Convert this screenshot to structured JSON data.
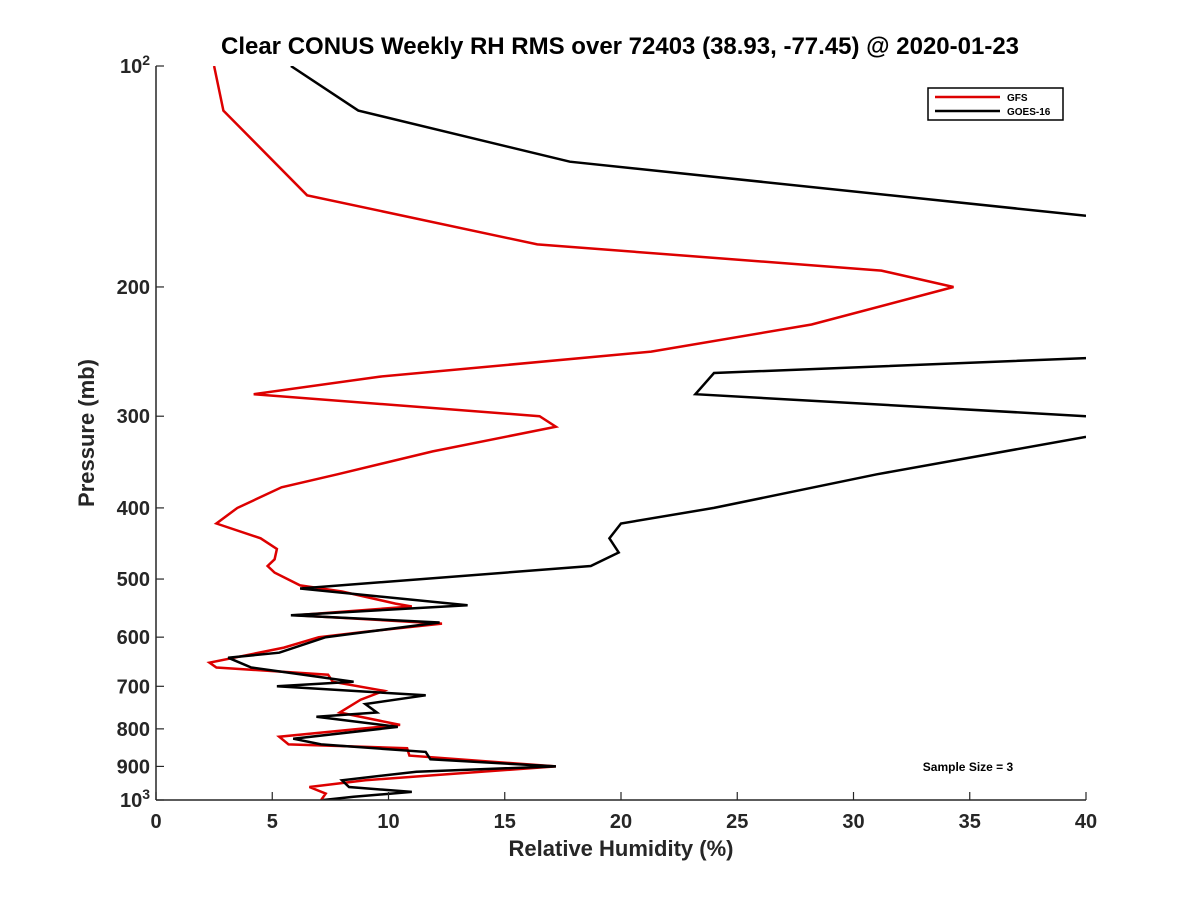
{
  "chart_data": {
    "type": "line",
    "title": "Clear CONUS Weekly RH RMS over 72403 (38.93, -77.45) @ 2020-01-23",
    "xlabel": "Relative Humidity (%)",
    "ylabel": "Pressure (mb)",
    "xlim": [
      0,
      40
    ],
    "ylim": [
      100,
      1000
    ],
    "y_scale": "log",
    "y_reversed": true,
    "x_ticks": [
      "0",
      "5",
      "10",
      "15",
      "20",
      "25",
      "30",
      "35",
      "40"
    ],
    "y_ticks": [
      {
        "value": 100,
        "base": "10",
        "exp": "2"
      },
      {
        "value": 200,
        "label": "200"
      },
      {
        "value": 300,
        "label": "300"
      },
      {
        "value": 400,
        "label": "400"
      },
      {
        "value": 500,
        "label": "500"
      },
      {
        "value": 600,
        "label": "600"
      },
      {
        "value": 700,
        "label": "700"
      },
      {
        "value": 800,
        "label": "800"
      },
      {
        "value": 900,
        "label": "900"
      },
      {
        "value": 1000,
        "base": "10",
        "exp": "3"
      }
    ],
    "legend_position": "top-right",
    "series": [
      {
        "name": "GFS",
        "color": "#dd0000",
        "points": [
          [
            2.5,
            100
          ],
          [
            2.9,
            115
          ],
          [
            6.5,
            150
          ],
          [
            16.4,
            175
          ],
          [
            31.2,
            190
          ],
          [
            34.3,
            200
          ],
          [
            28.2,
            225
          ],
          [
            21.3,
            245
          ],
          [
            9.6,
            265
          ],
          [
            4.2,
            280
          ],
          [
            16.5,
            300
          ],
          [
            17.2,
            310
          ],
          [
            11.9,
            335
          ],
          [
            7.8,
            360
          ],
          [
            5.4,
            375
          ],
          [
            3.5,
            400
          ],
          [
            2.6,
            420
          ],
          [
            4.5,
            440
          ],
          [
            5.2,
            455
          ],
          [
            5.1,
            470
          ],
          [
            4.8,
            480
          ],
          [
            5.1,
            490
          ],
          [
            6.2,
            510
          ],
          [
            8.0,
            520
          ],
          [
            10.3,
            540
          ],
          [
            11.0,
            545
          ],
          [
            6.0,
            560
          ],
          [
            12.3,
            575
          ],
          [
            9.0,
            590
          ],
          [
            7.0,
            600
          ],
          [
            5.5,
            620
          ],
          [
            2.3,
            650
          ],
          [
            2.6,
            660
          ],
          [
            7.4,
            675
          ],
          [
            7.6,
            690
          ],
          [
            9.8,
            710
          ],
          [
            8.8,
            730
          ],
          [
            7.9,
            760
          ],
          [
            10.5,
            790
          ],
          [
            5.3,
            820
          ],
          [
            5.7,
            840
          ],
          [
            10.8,
            850
          ],
          [
            10.9,
            870
          ],
          [
            17.2,
            900
          ],
          [
            12.0,
            925
          ],
          [
            9.0,
            940
          ],
          [
            6.6,
            960
          ],
          [
            7.3,
            980
          ],
          [
            7.1,
            1000
          ]
        ]
      },
      {
        "name": "GOES-16",
        "color": "#000000",
        "points": [
          [
            5.8,
            100
          ],
          [
            8.7,
            115
          ],
          [
            17.8,
            135
          ],
          [
            40.0,
            160
          ]
        ],
        "points_upper_tail": [
          [
            40.0,
            250
          ],
          [
            24.0,
            262
          ],
          [
            23.2,
            280
          ],
          [
            40.0,
            300
          ]
        ],
        "points_lower": [
          [
            40.0,
            320
          ],
          [
            31.0,
            360
          ],
          [
            24.0,
            400
          ],
          [
            20.0,
            420
          ],
          [
            19.5,
            440
          ],
          [
            19.9,
            460
          ],
          [
            18.7,
            480
          ],
          [
            6.2,
            515
          ],
          [
            13.4,
            543
          ],
          [
            5.8,
            560
          ],
          [
            12.2,
            573
          ],
          [
            7.3,
            600
          ],
          [
            5.3,
            630
          ],
          [
            3.1,
            640
          ],
          [
            4.1,
            660
          ],
          [
            8.5,
            690
          ],
          [
            5.2,
            700
          ],
          [
            11.6,
            720
          ],
          [
            9.0,
            740
          ],
          [
            9.5,
            760
          ],
          [
            6.9,
            770
          ],
          [
            10.4,
            795
          ],
          [
            5.9,
            825
          ],
          [
            7.1,
            840
          ],
          [
            11.6,
            860
          ],
          [
            11.8,
            880
          ],
          [
            17.2,
            900
          ],
          [
            11.2,
            915
          ],
          [
            8.0,
            940
          ],
          [
            8.3,
            960
          ],
          [
            11.0,
            975
          ],
          [
            8.5,
            990
          ],
          [
            7.2,
            1000
          ]
        ]
      }
    ],
    "annotation": "Sample Size = 3"
  }
}
